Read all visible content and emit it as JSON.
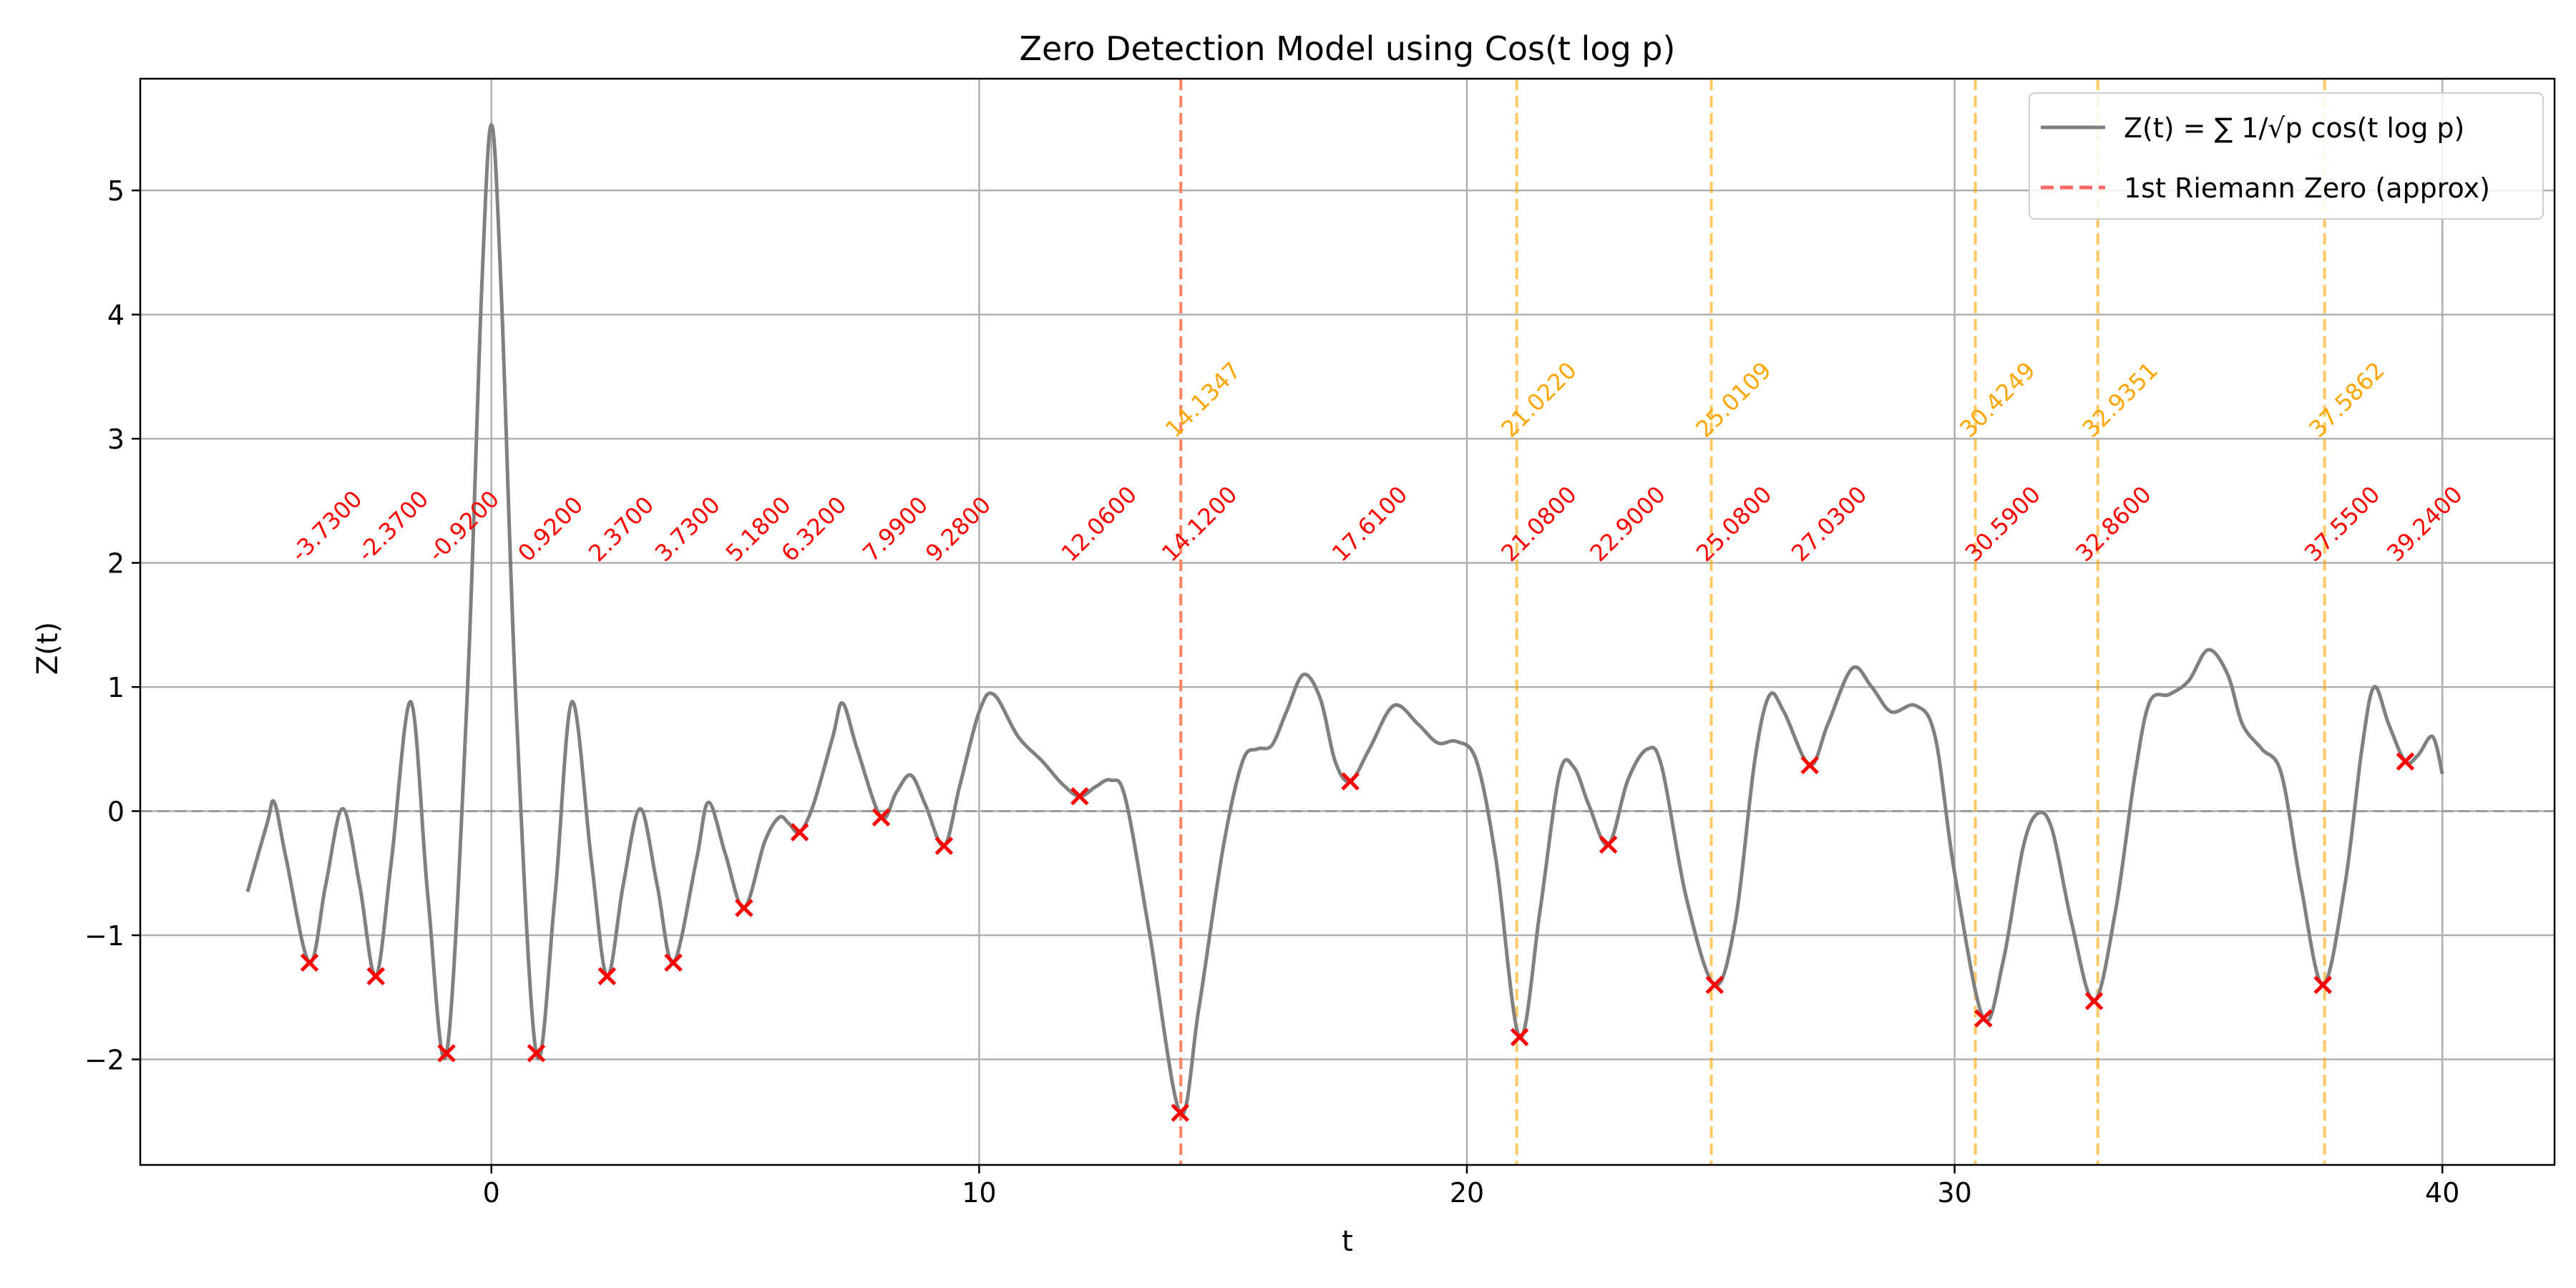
{
  "chart_data": {
    "type": "line",
    "title": "Zero Detection Model using Cos(t log p)",
    "xlabel": "t",
    "ylabel": "Z(t)",
    "xlim": [
      -7.2,
      42.3
    ],
    "ylim": [
      -2.85,
      5.9
    ],
    "xticks": [
      0,
      10,
      20,
      30,
      40
    ],
    "yticks": [
      -2,
      -1,
      0,
      1,
      2,
      3,
      4,
      5
    ],
    "xtick_labels": [
      "0",
      "10",
      "20",
      "30",
      "40"
    ],
    "ytick_labels": [
      "−2",
      "−1",
      "0",
      "1",
      "2",
      "3",
      "4",
      "5"
    ],
    "grid": true,
    "legend": {
      "position": "top-right",
      "entries": [
        {
          "label": "Z(t) = ∑ 1/√p cos(t log p)",
          "style": "solid",
          "color": "#808080"
        },
        {
          "label": "1st Riemann Zero (approx)",
          "style": "dashed",
          "color": "#ff6666"
        }
      ]
    },
    "series": [
      {
        "type": "line",
        "color": "#808080",
        "points": [
          [
            -5.0,
            -0.65
          ],
          [
            -4.6,
            -0.1
          ],
          [
            -4.45,
            0.07
          ],
          [
            -4.2,
            -0.4
          ],
          [
            -3.73,
            -1.22
          ],
          [
            -3.4,
            -0.6
          ],
          [
            -3.05,
            0.02
          ],
          [
            -2.7,
            -0.6
          ],
          [
            -2.37,
            -1.33
          ],
          [
            -2.05,
            -0.4
          ],
          [
            -1.65,
            0.88
          ],
          [
            -1.3,
            -0.7
          ],
          [
            -0.92,
            -1.95
          ],
          [
            -0.5,
            0.9
          ],
          [
            -0.2,
            4.2
          ],
          [
            0.0,
            5.53
          ],
          [
            0.2,
            4.2
          ],
          [
            0.5,
            0.9
          ],
          [
            0.92,
            -1.95
          ],
          [
            1.3,
            -0.7
          ],
          [
            1.65,
            0.88
          ],
          [
            2.05,
            -0.4
          ],
          [
            2.37,
            -1.33
          ],
          [
            2.7,
            -0.6
          ],
          [
            3.05,
            0.02
          ],
          [
            3.4,
            -0.6
          ],
          [
            3.73,
            -1.22
          ],
          [
            4.2,
            -0.4
          ],
          [
            4.45,
            0.07
          ],
          [
            4.8,
            -0.35
          ],
          [
            5.18,
            -0.78
          ],
          [
            5.6,
            -0.25
          ],
          [
            5.9,
            -0.05
          ],
          [
            6.1,
            -0.1
          ],
          [
            6.32,
            -0.17
          ],
          [
            6.6,
            0.05
          ],
          [
            7.0,
            0.6
          ],
          [
            7.2,
            0.87
          ],
          [
            7.5,
            0.5
          ],
          [
            7.99,
            -0.05
          ],
          [
            8.3,
            0.15
          ],
          [
            8.6,
            0.29
          ],
          [
            8.9,
            0.05
          ],
          [
            9.28,
            -0.28
          ],
          [
            9.6,
            0.2
          ],
          [
            10.0,
            0.8
          ],
          [
            10.3,
            0.94
          ],
          [
            10.8,
            0.6
          ],
          [
            11.3,
            0.4
          ],
          [
            11.7,
            0.22
          ],
          [
            12.06,
            0.12
          ],
          [
            12.4,
            0.2
          ],
          [
            12.7,
            0.25
          ],
          [
            13.0,
            0.1
          ],
          [
            13.5,
            -1.0
          ],
          [
            14.12,
            -2.43
          ],
          [
            14.5,
            -1.6
          ],
          [
            15.0,
            -0.3
          ],
          [
            15.4,
            0.4
          ],
          [
            15.7,
            0.5
          ],
          [
            16.0,
            0.53
          ],
          [
            16.3,
            0.8
          ],
          [
            16.65,
            1.1
          ],
          [
            17.0,
            0.9
          ],
          [
            17.3,
            0.4
          ],
          [
            17.61,
            0.24
          ],
          [
            18.0,
            0.5
          ],
          [
            18.5,
            0.85
          ],
          [
            19.0,
            0.7
          ],
          [
            19.4,
            0.55
          ],
          [
            19.8,
            0.56
          ],
          [
            20.2,
            0.4
          ],
          [
            20.6,
            -0.4
          ],
          [
            21.08,
            -1.82
          ],
          [
            21.5,
            -0.8
          ],
          [
            21.9,
            0.3
          ],
          [
            22.2,
            0.35
          ],
          [
            22.5,
            0.05
          ],
          [
            22.9,
            -0.27
          ],
          [
            23.3,
            0.25
          ],
          [
            23.7,
            0.5
          ],
          [
            24.0,
            0.35
          ],
          [
            24.5,
            -0.7
          ],
          [
            25.08,
            -1.4
          ],
          [
            25.5,
            -0.9
          ],
          [
            25.9,
            0.4
          ],
          [
            26.2,
            0.93
          ],
          [
            26.5,
            0.8
          ],
          [
            27.03,
            0.37
          ],
          [
            27.4,
            0.7
          ],
          [
            27.9,
            1.15
          ],
          [
            28.3,
            1.0
          ],
          [
            28.7,
            0.8
          ],
          [
            29.2,
            0.85
          ],
          [
            29.6,
            0.6
          ],
          [
            30.0,
            -0.5
          ],
          [
            30.59,
            -1.67
          ],
          [
            31.0,
            -1.2
          ],
          [
            31.4,
            -0.3
          ],
          [
            31.7,
            -0.02
          ],
          [
            32.0,
            -0.15
          ],
          [
            32.4,
            -0.9
          ],
          [
            32.86,
            -1.53
          ],
          [
            33.3,
            -0.8
          ],
          [
            33.7,
            0.3
          ],
          [
            34.0,
            0.88
          ],
          [
            34.4,
            0.94
          ],
          [
            34.8,
            1.05
          ],
          [
            35.2,
            1.3
          ],
          [
            35.6,
            1.1
          ],
          [
            35.9,
            0.7
          ],
          [
            36.3,
            0.5
          ],
          [
            36.7,
            0.3
          ],
          [
            37.1,
            -0.6
          ],
          [
            37.55,
            -1.4
          ],
          [
            38.0,
            -0.6
          ],
          [
            38.35,
            0.5
          ],
          [
            38.6,
            1.0
          ],
          [
            38.9,
            0.7
          ],
          [
            39.24,
            0.4
          ],
          [
            39.5,
            0.45
          ],
          [
            39.8,
            0.6
          ],
          [
            40.0,
            0.3
          ]
        ]
      }
    ],
    "detected_zeros": {
      "marker": "x",
      "color": "#ff0000",
      "points": [
        [
          -3.73,
          -1.22
        ],
        [
          -2.37,
          -1.33
        ],
        [
          -0.92,
          -1.95
        ],
        [
          0.92,
          -1.95
        ],
        [
          2.37,
          -1.33
        ],
        [
          3.73,
          -1.22
        ],
        [
          5.18,
          -0.78
        ],
        [
          6.32,
          -0.17
        ],
        [
          7.99,
          -0.05
        ],
        [
          9.28,
          -0.28
        ],
        [
          12.06,
          0.12
        ],
        [
          14.12,
          -2.43
        ],
        [
          17.61,
          0.24
        ],
        [
          21.08,
          -1.82
        ],
        [
          22.9,
          -0.27
        ],
        [
          25.08,
          -1.4
        ],
        [
          27.03,
          0.37
        ],
        [
          30.59,
          -1.67
        ],
        [
          32.86,
          -1.53
        ],
        [
          37.55,
          -1.4
        ],
        [
          39.24,
          0.4
        ]
      ],
      "labels": [
        "-3.7300",
        "-2.3700",
        "-0.9200",
        "0.9200",
        "2.3700",
        "3.7300",
        "5.1800",
        "6.3200",
        "7.9900",
        "9.2800",
        "12.0600",
        "14.1200",
        "17.6100",
        "21.0800",
        "22.9000",
        "25.0800",
        "27.0300",
        "30.5900",
        "32.8600",
        "37.5500",
        "39.2400"
      ],
      "label_y": 2.0,
      "label_color": "#ff0000"
    },
    "riemann_zeros": {
      "values": [
        14.1347,
        21.022,
        25.0109,
        30.4249,
        32.9351,
        37.5862
      ],
      "labels": [
        "14.1347",
        "21.0220",
        "25.0109",
        "30.4249",
        "32.9351",
        "37.5862"
      ],
      "label_y": 3.0,
      "color": "#ffa500"
    },
    "first_zero_line": {
      "x": 14.1347,
      "color": "#ff6666"
    },
    "zero_line": {
      "y": 0,
      "color": "#999999"
    }
  }
}
